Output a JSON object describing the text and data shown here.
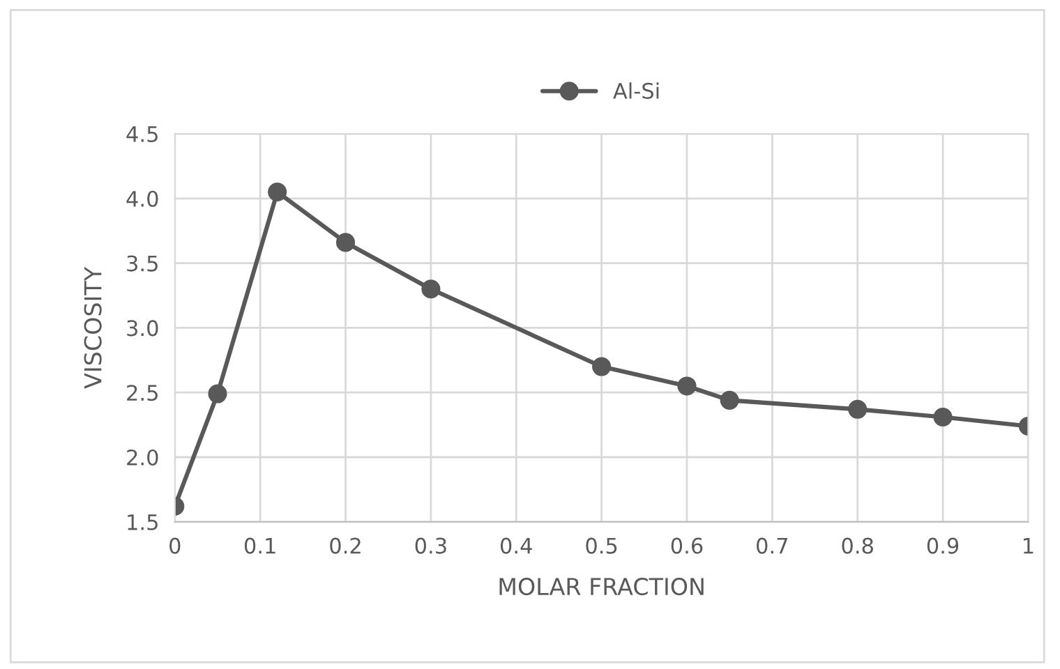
{
  "chart_data": {
    "type": "line",
    "xlabel": "MOLAR FRACTION",
    "ylabel": "VISCOSITY",
    "x": [
      0,
      0.05,
      0.12,
      0.2,
      0.3,
      0.5,
      0.6,
      0.65,
      0.8,
      0.9,
      1
    ],
    "series": [
      {
        "name": "Al-Si",
        "color": "#595959",
        "values": [
          1.62,
          2.49,
          4.05,
          3.66,
          3.3,
          2.7,
          2.55,
          2.44,
          2.37,
          2.31,
          2.24
        ]
      }
    ],
    "xlim": [
      0,
      1
    ],
    "xticks": [
      0,
      0.1,
      0.2,
      0.3,
      0.4,
      0.5,
      0.6,
      0.7,
      0.8,
      0.9,
      1
    ],
    "ylim": [
      1.5,
      4.5
    ],
    "yticks": [
      {
        "value": 1.5,
        "label": "1.5"
      },
      {
        "value": 2.0,
        "label": "2.0"
      },
      {
        "value": 2.5,
        "label": "2.5"
      },
      {
        "value": 3.0,
        "label": "3.0"
      },
      {
        "value": 3.5,
        "label": "3.5"
      },
      {
        "value": 4.0,
        "label": "4.0"
      },
      {
        "value": 4.5,
        "label": "4.5"
      }
    ],
    "grid": true,
    "legend": "top",
    "marker": "circle",
    "line_style": "solid"
  }
}
